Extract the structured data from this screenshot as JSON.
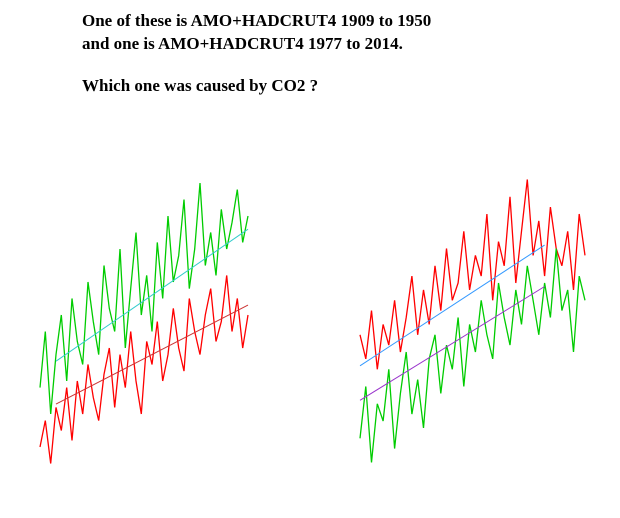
{
  "header": {
    "lines": [
      "One of these is AMO+HADCRUT4 1909 to 1950",
      "and one is AMO+HADCRUT4 1977 to 2014.",
      "Which one was caused by CO2 ?"
    ]
  },
  "chart_data": [
    {
      "type": "line",
      "xlim": [
        0,
        39
      ],
      "ylim": [
        0,
        100
      ],
      "x": [
        0,
        1,
        2,
        3,
        4,
        5,
        6,
        7,
        8,
        9,
        10,
        11,
        12,
        13,
        14,
        15,
        16,
        17,
        18,
        19,
        20,
        21,
        22,
        23,
        24,
        25,
        26,
        27,
        28,
        29,
        30,
        31,
        32,
        33,
        34,
        35,
        36,
        37,
        38,
        39
      ],
      "series": [
        {
          "color": "#ff0000",
          "values": [
            10,
            18,
            5,
            22,
            15,
            28,
            12,
            30,
            20,
            35,
            25,
            18,
            32,
            40,
            22,
            38,
            28,
            45,
            30,
            20,
            42,
            35,
            48,
            30,
            38,
            52,
            40,
            33,
            55,
            45,
            38,
            50,
            58,
            42,
            48,
            62,
            45,
            55,
            40,
            50
          ]
        },
        {
          "color": "#00cc00",
          "values": [
            28,
            45,
            20,
            38,
            50,
            30,
            55,
            42,
            35,
            60,
            48,
            38,
            65,
            52,
            45,
            70,
            40,
            58,
            75,
            50,
            62,
            45,
            72,
            55,
            80,
            60,
            68,
            85,
            58,
            70,
            90,
            65,
            75,
            62,
            82,
            70,
            78,
            88,
            72,
            80
          ]
        },
        {
          "color": "#cc3333",
          "x": [
            3,
            39
          ],
          "values": [
            23,
            53
          ]
        },
        {
          "color": "#33cccc",
          "x": [
            3,
            39
          ],
          "values": [
            36,
            76
          ]
        }
      ]
    },
    {
      "type": "line",
      "xlim": [
        0,
        39
      ],
      "ylim": [
        0,
        100
      ],
      "x": [
        0,
        1,
        2,
        3,
        4,
        5,
        6,
        7,
        8,
        9,
        10,
        11,
        12,
        13,
        14,
        15,
        16,
        17,
        18,
        19,
        20,
        21,
        22,
        23,
        24,
        25,
        26,
        27,
        28,
        29,
        30,
        31,
        32,
        33,
        34,
        35,
        36,
        37,
        38,
        39
      ],
      "series": [
        {
          "color": "#ff0000",
          "values": [
            45,
            38,
            52,
            35,
            48,
            42,
            55,
            40,
            50,
            62,
            45,
            58,
            48,
            65,
            52,
            70,
            55,
            60,
            75,
            58,
            68,
            62,
            80,
            55,
            72,
            65,
            85,
            60,
            75,
            90,
            68,
            78,
            62,
            82,
            70,
            65,
            75,
            58,
            80,
            68
          ]
        },
        {
          "color": "#00cc00",
          "values": [
            15,
            30,
            8,
            25,
            20,
            35,
            12,
            28,
            40,
            22,
            32,
            18,
            38,
            45,
            28,
            42,
            35,
            50,
            30,
            48,
            40,
            55,
            45,
            38,
            60,
            50,
            42,
            58,
            48,
            65,
            55,
            45,
            60,
            50,
            70,
            52,
            58,
            40,
            62,
            55
          ]
        },
        {
          "color": "#3399ff",
          "x": [
            0,
            32
          ],
          "values": [
            36,
            71
          ]
        },
        {
          "color": "#9933cc",
          "x": [
            0,
            32
          ],
          "values": [
            26,
            59
          ]
        }
      ]
    }
  ]
}
